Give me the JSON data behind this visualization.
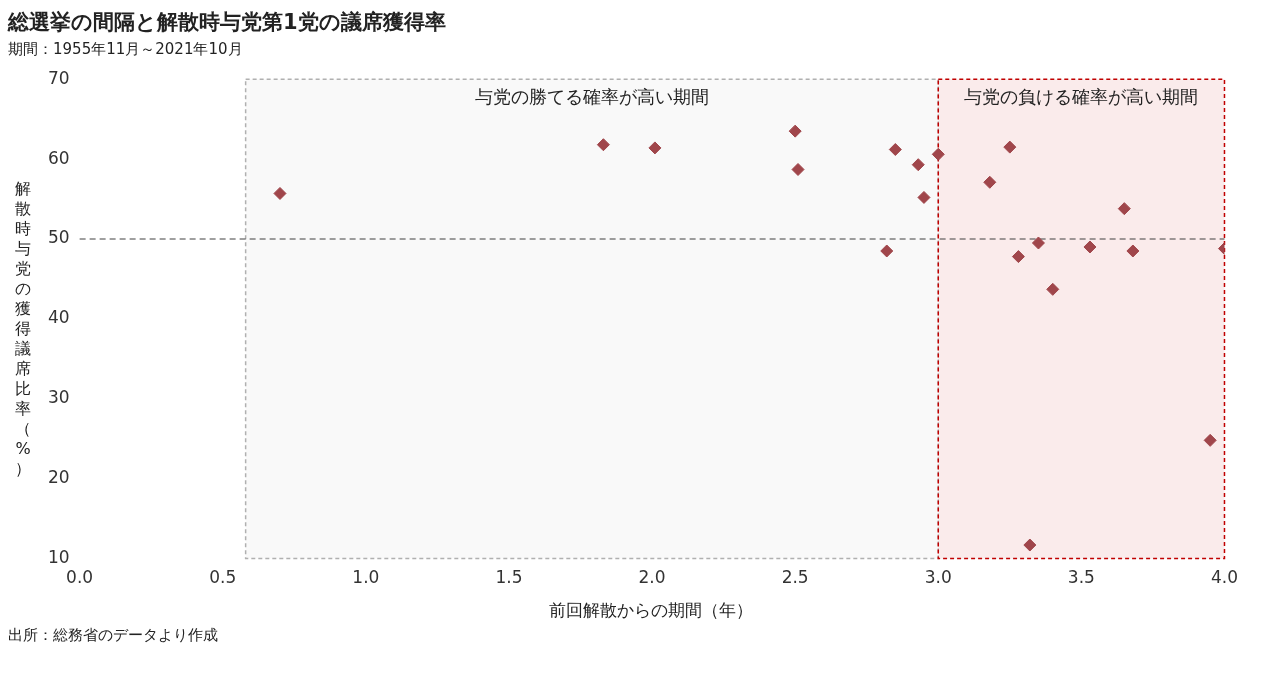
{
  "chart_data": {
    "type": "scatter",
    "title": "総選挙の間隔と解散時与党第1党の議席獲得率",
    "subtitle": "期間：1955年11月～2021年10月",
    "xlabel": "前回解散からの期間（年）",
    "ylabel": "解散時与党の獲得議席比率（%）",
    "x": [
      0.7,
      1.83,
      2.01,
      2.5,
      2.51,
      2.82,
      2.85,
      2.93,
      2.95,
      3.0,
      3.18,
      3.25,
      3.28,
      3.32,
      3.35,
      3.4,
      3.53,
      3.65,
      3.68,
      3.95,
      4.0
    ],
    "series": [
      {
        "color": "#a0464b",
        "values": [
          55.7,
          61.8,
          61.4,
          63.5,
          58.7,
          48.5,
          61.2,
          59.3,
          55.2,
          60.6,
          57.1,
          61.5,
          47.8,
          11.7,
          49.5,
          43.7,
          49.0,
          53.8,
          48.5,
          24.8,
          48.8
        ]
      }
    ],
    "xlim": [
      0,
      4
    ],
    "ylim": [
      10,
      70
    ],
    "xticks": [
      {
        "value": 0,
        "label": "0.0"
      },
      {
        "value": 0.5,
        "label": "0.5"
      },
      {
        "value": 1,
        "label": "1.0"
      },
      {
        "value": 1.5,
        "label": "1.5"
      },
      {
        "value": 2,
        "label": "2.0"
      },
      {
        "value": 2.5,
        "label": "2.5"
      },
      {
        "value": 3,
        "label": "3.0"
      },
      {
        "value": 3.5,
        "label": "3.5"
      },
      {
        "value": 4,
        "label": "4.0"
      }
    ],
    "yticks": [
      10,
      20,
      30,
      40,
      50,
      60,
      70
    ],
    "ref_lines": [
      {
        "axis": "y",
        "value": 50,
        "color": "#404040",
        "line_style": "dashed"
      }
    ],
    "bands": [
      {
        "axis": "x",
        "from": 0.58,
        "to": 3.0,
        "label": "与党の勝てる確率が高い期間",
        "color": "#b0b0b0"
      },
      {
        "axis": "x",
        "from": 3.0,
        "to": 4.0,
        "label": "与党の負ける確率が高い期間",
        "color": "#c00000"
      }
    ],
    "marker": "diamond",
    "grid": false,
    "legend": false,
    "annotations": [
      "出所：総務省のデータより作成"
    ]
  }
}
